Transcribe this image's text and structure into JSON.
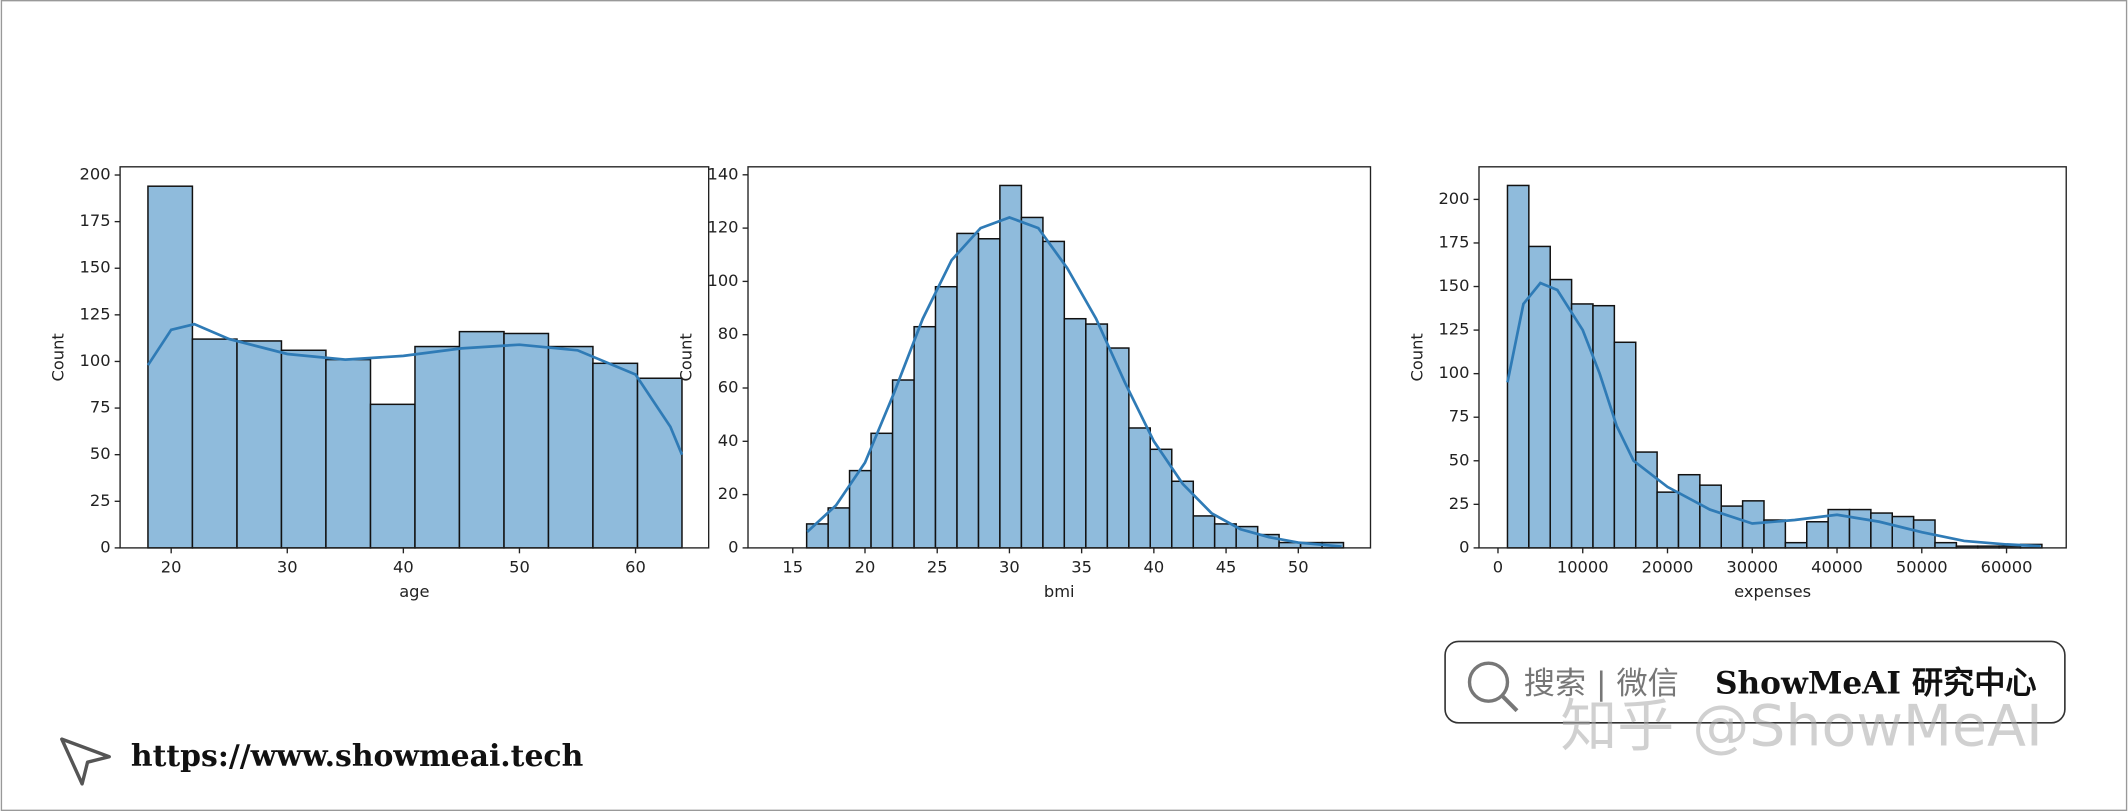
{
  "chart_data": [
    {
      "type": "histogram",
      "xlabel": "age",
      "ylabel": "Count",
      "color": "#8fbbdc",
      "edgecolor": "#111111",
      "bins": [
        18,
        21.83,
        25.67,
        29.5,
        33.33,
        37.17,
        41,
        44.83,
        48.67,
        52.5,
        56.33,
        60.17,
        64
      ],
      "values": [
        194,
        112,
        111,
        106,
        101,
        77,
        108,
        116,
        115,
        108,
        99,
        91
      ],
      "kde": {
        "color": "#2f7bb6",
        "x": [
          18,
          20,
          22,
          25,
          30,
          35,
          40,
          45,
          50,
          55,
          60,
          63,
          64
        ],
        "values": [
          98,
          117,
          120,
          112,
          104,
          101,
          103,
          107,
          109,
          106,
          93,
          65,
          50
        ]
      },
      "xlim": [
        15.6,
        66.3
      ],
      "ylim": [
        0,
        204.4
      ],
      "xticks": [
        20,
        30,
        40,
        50,
        60
      ],
      "yticks": [
        0,
        25,
        50,
        75,
        100,
        125,
        150,
        175,
        200
      ]
    },
    {
      "type": "histogram",
      "xlabel": "bmi",
      "ylabel": "Count",
      "color": "#8fbbdc",
      "edgecolor": "#111111",
      "bins": [
        15.96,
        17.45,
        18.93,
        20.42,
        21.91,
        23.4,
        24.88,
        26.37,
        27.86,
        29.34,
        30.83,
        32.32,
        33.8,
        35.29,
        36.78,
        38.27,
        39.75,
        41.24,
        42.73,
        44.21,
        45.7,
        47.19,
        48.67,
        50.16,
        51.65,
        53.13
      ],
      "values": [
        9,
        15,
        29,
        43,
        63,
        83,
        98,
        118,
        116,
        136,
        124,
        115,
        86,
        84,
        75,
        45,
        37,
        25,
        12,
        9,
        8,
        5,
        2,
        2,
        2
      ],
      "kde": {
        "color": "#2f7bb6",
        "x": [
          16,
          18,
          20,
          22,
          24,
          26,
          28,
          30,
          32,
          34,
          36,
          38,
          40,
          42,
          44,
          46,
          48,
          50,
          53
        ],
        "values": [
          6,
          16,
          32,
          58,
          86,
          108,
          120,
          124,
          120,
          105,
          86,
          62,
          40,
          24,
          13,
          7,
          4,
          2,
          0.5
        ]
      },
      "xlim": [
        11.9,
        55
      ],
      "ylim": [
        0,
        143
      ],
      "xticks": [
        15,
        20,
        25,
        30,
        35,
        40,
        45,
        50
      ],
      "yticks": [
        0,
        20,
        40,
        60,
        80,
        100,
        120,
        140
      ]
    },
    {
      "type": "histogram",
      "xlabel": "expenses",
      "ylabel": "Count",
      "color": "#8fbbdc",
      "edgecolor": "#111111",
      "bins": [
        1120,
        3642,
        6164,
        8686,
        11208,
        13730,
        16252,
        18774,
        21296,
        23818,
        26340,
        28862,
        31384,
        33906,
        36428,
        38950,
        41472,
        43994,
        46516,
        49038,
        51560,
        54082,
        56604,
        59126,
        61648,
        64170
      ],
      "values": [
        208,
        173,
        154,
        140,
        139,
        118,
        55,
        32,
        42,
        36,
        24,
        27,
        16,
        3,
        15,
        22,
        22,
        20,
        18,
        16,
        3,
        1,
        1,
        1,
        2
      ],
      "kde": {
        "color": "#2f7bb6",
        "x": [
          1120,
          3000,
          5000,
          7000,
          10000,
          12000,
          14000,
          16000,
          20000,
          25000,
          30000,
          35000,
          40000,
          45000,
          50000,
          55000,
          60000,
          64000
        ],
        "values": [
          95,
          140,
          152,
          148,
          125,
          100,
          70,
          50,
          35,
          22,
          14,
          16,
          19,
          15,
          9,
          4,
          2,
          1
        ]
      },
      "xlim": [
        -2240,
        67040
      ],
      "ylim": [
        0,
        218.7
      ],
      "xticks": [
        0,
        10000,
        20000,
        30000,
        40000,
        50000,
        60000
      ],
      "yticks": [
        0,
        25,
        50,
        75,
        100,
        125,
        150,
        175,
        200
      ]
    }
  ],
  "watermark": {
    "search": "搜索 | 微信",
    "brand": "ShowMeAI 研究中心",
    "zhihu": "知乎 @ShowMeAI"
  },
  "footer": {
    "url": "https://www.showmeai.tech"
  }
}
